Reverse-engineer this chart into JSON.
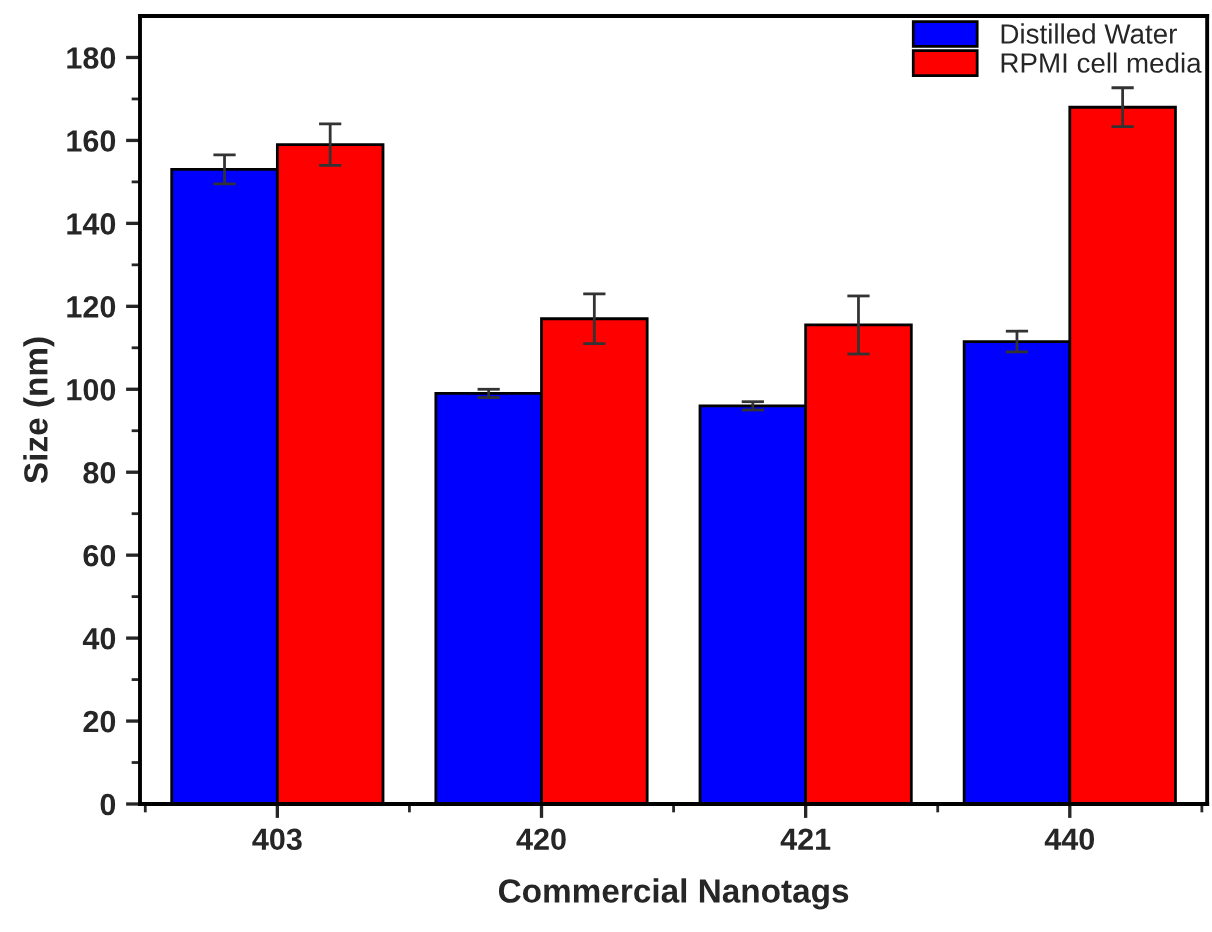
{
  "chart_data": {
    "type": "bar",
    "xlabel": "Commercial Nanotags",
    "ylabel": "Size (nm)",
    "categories": [
      "403",
      "420",
      "421",
      "440"
    ],
    "series": [
      {
        "name": "Distilled Water",
        "color": "#0000ff",
        "values": [
          153,
          99,
          96,
          111.5
        ],
        "errors": [
          3.5,
          1,
          1,
          2.5
        ]
      },
      {
        "name": "RPMI cell media",
        "color": "#ff0000",
        "values": [
          159,
          117,
          115.5,
          168
        ],
        "errors": [
          5,
          6,
          7,
          4.7
        ]
      }
    ],
    "ylim": [
      0,
      190
    ],
    "yticks": [
      0,
      20,
      40,
      60,
      80,
      100,
      120,
      140,
      160,
      180
    ],
    "grid": false,
    "legend": "top right"
  }
}
